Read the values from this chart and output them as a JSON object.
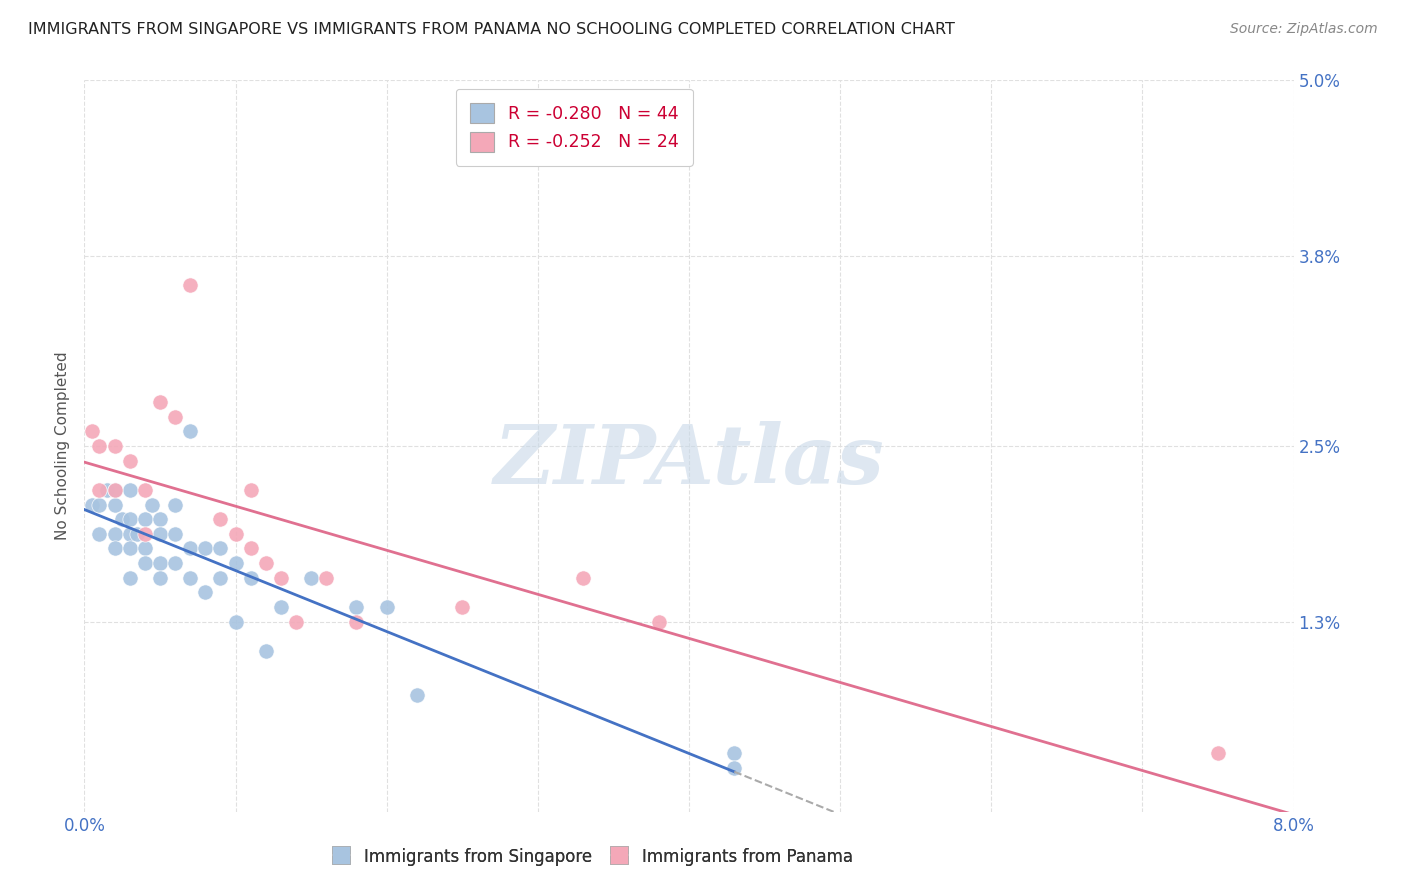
{
  "title": "IMMIGRANTS FROM SINGAPORE VS IMMIGRANTS FROM PANAMA NO SCHOOLING COMPLETED CORRELATION CHART",
  "source": "Source: ZipAtlas.com",
  "ylabel": "No Schooling Completed",
  "xlim": [
    0.0,
    0.08
  ],
  "ylim": [
    0.0,
    0.05
  ],
  "xticks": [
    0.0,
    0.01,
    0.02,
    0.03,
    0.04,
    0.05,
    0.06,
    0.07,
    0.08
  ],
  "ytick_labels": [
    "5.0%",
    "3.8%",
    "2.5%",
    "1.3%"
  ],
  "yticks": [
    0.05,
    0.038,
    0.025,
    0.013
  ],
  "singapore_color": "#a8c4e0",
  "panama_color": "#f4a8b8",
  "singapore_line_color": "#4472c4",
  "panama_line_color": "#e07090",
  "singapore_R": -0.28,
  "singapore_N": 44,
  "panama_R": -0.252,
  "panama_N": 24,
  "singapore_x": [
    0.0005,
    0.001,
    0.001,
    0.0015,
    0.002,
    0.002,
    0.002,
    0.002,
    0.0025,
    0.003,
    0.003,
    0.003,
    0.003,
    0.003,
    0.0035,
    0.004,
    0.004,
    0.004,
    0.0045,
    0.005,
    0.005,
    0.005,
    0.005,
    0.006,
    0.006,
    0.006,
    0.007,
    0.007,
    0.007,
    0.008,
    0.008,
    0.009,
    0.009,
    0.01,
    0.01,
    0.011,
    0.012,
    0.013,
    0.015,
    0.018,
    0.02,
    0.022,
    0.043,
    0.043
  ],
  "singapore_y": [
    0.021,
    0.021,
    0.019,
    0.022,
    0.022,
    0.021,
    0.019,
    0.018,
    0.02,
    0.022,
    0.02,
    0.019,
    0.018,
    0.016,
    0.019,
    0.02,
    0.018,
    0.017,
    0.021,
    0.02,
    0.019,
    0.017,
    0.016,
    0.021,
    0.019,
    0.017,
    0.026,
    0.018,
    0.016,
    0.018,
    0.015,
    0.018,
    0.016,
    0.017,
    0.013,
    0.016,
    0.011,
    0.014,
    0.016,
    0.014,
    0.014,
    0.008,
    0.004,
    0.003
  ],
  "panama_x": [
    0.0005,
    0.001,
    0.001,
    0.002,
    0.002,
    0.003,
    0.004,
    0.004,
    0.005,
    0.006,
    0.007,
    0.009,
    0.01,
    0.011,
    0.011,
    0.012,
    0.013,
    0.014,
    0.016,
    0.018,
    0.025,
    0.033,
    0.038,
    0.075
  ],
  "panama_y": [
    0.026,
    0.025,
    0.022,
    0.025,
    0.022,
    0.024,
    0.022,
    0.019,
    0.028,
    0.027,
    0.036,
    0.02,
    0.019,
    0.022,
    0.018,
    0.017,
    0.016,
    0.013,
    0.016,
    0.013,
    0.014,
    0.016,
    0.013,
    0.004
  ],
  "watermark": "ZIPAtlas",
  "background_color": "#ffffff",
  "grid_color": "#e0e0e0"
}
